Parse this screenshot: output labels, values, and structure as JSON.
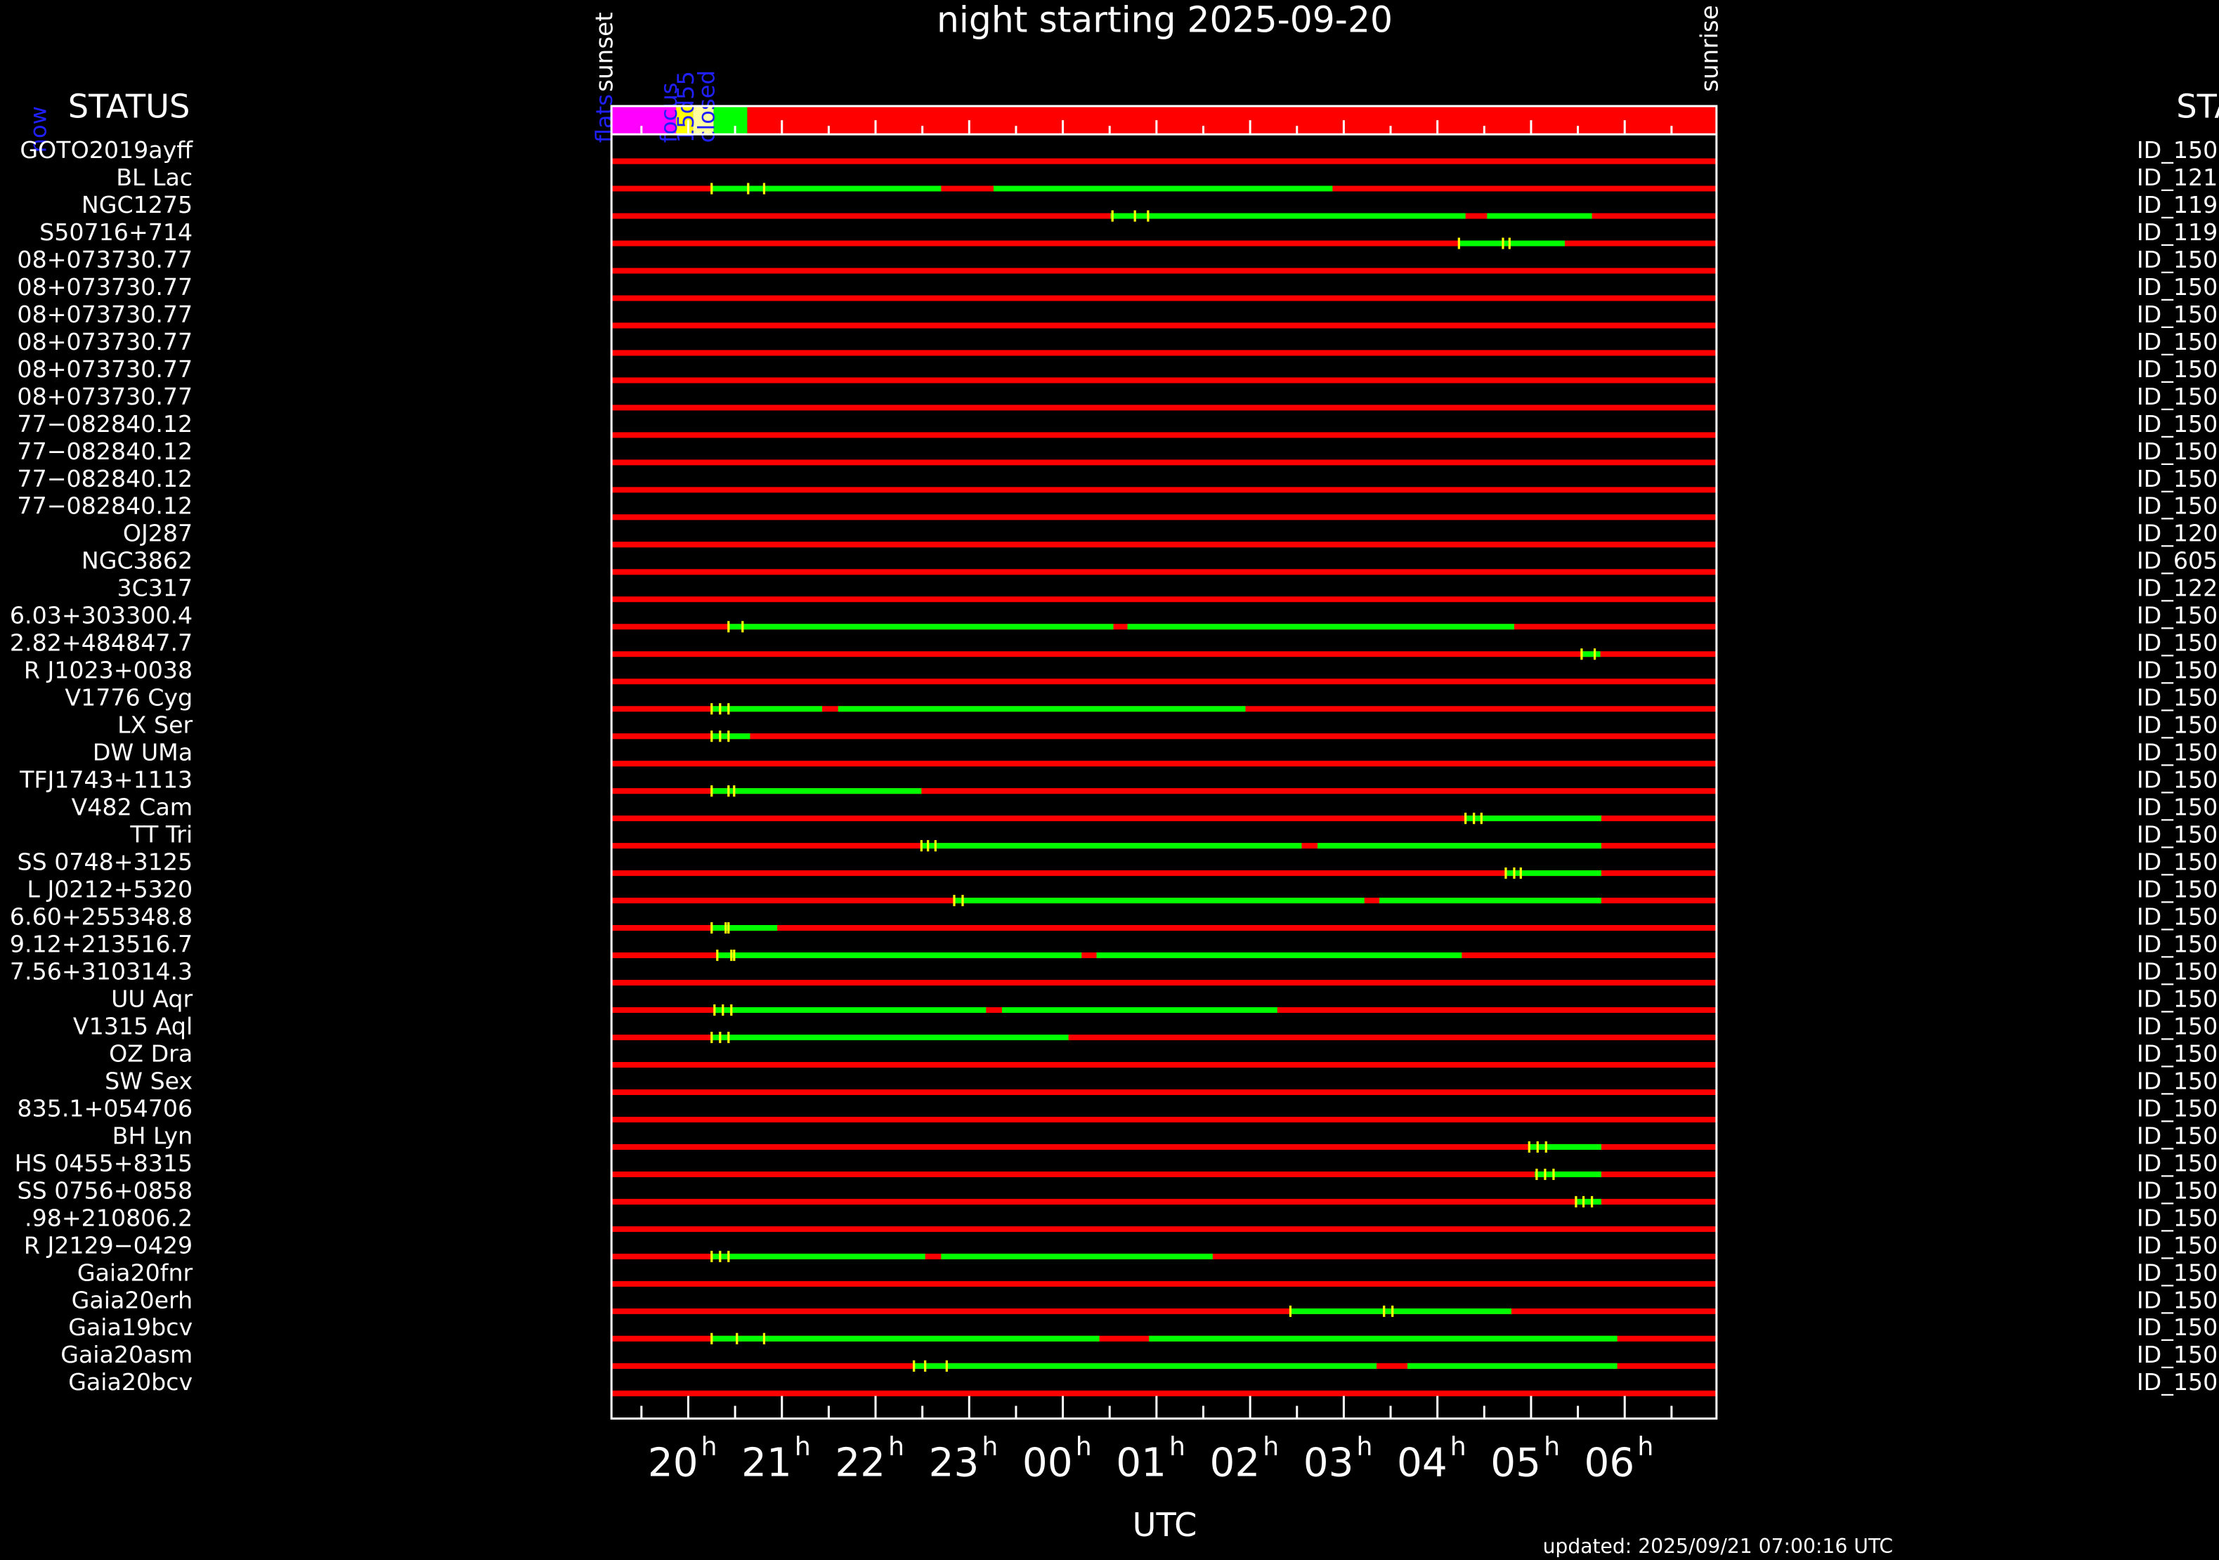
{
  "chart_data": {
    "type": "timeline",
    "title": "night starting 2025-09-20",
    "xlabel": "UTC",
    "footnote": "updated: 2025/09/21 07:00:16 UTC",
    "header_left": "STATUS",
    "header_right": "STAT",
    "now_label": "now",
    "xlim": [
      19.18,
      30.98
    ],
    "xticks": [
      {
        "value": 20,
        "label": "20"
      },
      {
        "value": 21,
        "label": "21"
      },
      {
        "value": 22,
        "label": "22"
      },
      {
        "value": 23,
        "label": "23"
      },
      {
        "value": 24,
        "label": "00"
      },
      {
        "value": 25,
        "label": "01"
      },
      {
        "value": 26,
        "label": "02"
      },
      {
        "value": 27,
        "label": "03"
      },
      {
        "value": 28,
        "label": "04"
      },
      {
        "value": 29,
        "label": "05"
      },
      {
        "value": 30,
        "label": "06"
      }
    ],
    "tick_unit": "h",
    "minor_xticks": [
      19.5,
      20.5,
      21.5,
      22.5,
      23.5,
      24.5,
      25.5,
      26.5,
      27.5,
      28.5,
      29.5,
      30.5
    ],
    "annotations": [
      {
        "label": "sunset",
        "x": 19.18
      },
      {
        "label": "sunrise",
        "x": 30.98
      }
    ],
    "events": [
      {
        "label": "flats",
        "start": 19.18,
        "end": 19.87,
        "color": "#ff00ff"
      },
      {
        "label": "focus",
        "start": 19.87,
        "end": 20.05,
        "color": "#ffff00"
      },
      {
        "label": "15d55",
        "start": 20.05,
        "end": 20.27,
        "color": "#ffffa0"
      },
      {
        "label": "closed",
        "start": 20.27,
        "end": 20.63,
        "color": "#00ff00"
      },
      {
        "start": 20.63,
        "end": 30.98,
        "color": "#ff0000"
      }
    ],
    "colors": {
      "base": "#ff0000",
      "segment": "#00ff00",
      "marker": "#ffff00",
      "event_label": "#2020ff"
    },
    "rows": [
      {
        "name": "GOTO2019ayff",
        "id": "ID_150",
        "segments": [],
        "markers": []
      },
      {
        "name": "BL Lac",
        "id": "ID_121",
        "segments": [
          [
            20.25,
            22.7
          ],
          [
            23.26,
            26.88
          ]
        ],
        "markers": [
          20.25,
          20.64,
          20.81
        ]
      },
      {
        "name": "NGC1275",
        "id": "ID_119",
        "segments": [
          [
            24.51,
            28.3
          ],
          [
            28.53,
            29.65
          ]
        ],
        "markers": [
          24.53,
          24.77,
          24.91
        ]
      },
      {
        "name": "S50716+714",
        "id": "ID_119",
        "segments": [
          [
            28.23,
            29.36
          ]
        ],
        "markers": [
          28.23,
          28.7,
          28.77
        ]
      },
      {
        "name": "08+073730.77",
        "id": "ID_150",
        "segments": [],
        "markers": []
      },
      {
        "name": "08+073730.77",
        "id": "ID_150",
        "segments": [],
        "markers": []
      },
      {
        "name": "08+073730.77",
        "id": "ID_150",
        "segments": [],
        "markers": []
      },
      {
        "name": "08+073730.77",
        "id": "ID_150",
        "segments": [],
        "markers": []
      },
      {
        "name": "08+073730.77",
        "id": "ID_150",
        "segments": [],
        "markers": []
      },
      {
        "name": "08+073730.77",
        "id": "ID_150",
        "segments": [],
        "markers": []
      },
      {
        "name": "77−082840.12",
        "id": "ID_150",
        "segments": [],
        "markers": []
      },
      {
        "name": "77−082840.12",
        "id": "ID_150",
        "segments": [],
        "markers": []
      },
      {
        "name": "77−082840.12",
        "id": "ID_150",
        "segments": [],
        "markers": []
      },
      {
        "name": "77−082840.12",
        "id": "ID_150",
        "segments": [],
        "markers": []
      },
      {
        "name": "OJ287",
        "id": "ID_120",
        "segments": [],
        "markers": []
      },
      {
        "name": "NGC3862",
        "id": "ID_605",
        "segments": [],
        "markers": []
      },
      {
        "name": "3C317",
        "id": "ID_122",
        "segments": [],
        "markers": []
      },
      {
        "name": "6.03+303300.4",
        "id": "ID_150",
        "segments": [
          [
            20.42,
            24.54
          ],
          [
            24.69,
            28.82
          ]
        ],
        "markers": [
          20.43,
          20.58
        ]
      },
      {
        "name": "2.82+484847.7",
        "id": "ID_150",
        "segments": [
          [
            29.53,
            29.74
          ]
        ],
        "markers": [
          29.54,
          29.68
        ]
      },
      {
        "name": "R J1023+0038",
        "id": "ID_150",
        "segments": [],
        "markers": []
      },
      {
        "name": "V1776 Cyg",
        "id": "ID_150",
        "segments": [
          [
            20.25,
            21.43
          ],
          [
            21.6,
            25.95
          ]
        ],
        "markers": [
          20.25,
          20.34,
          20.43
        ]
      },
      {
        "name": "LX Ser",
        "id": "ID_150",
        "segments": [
          [
            20.25,
            20.66
          ]
        ],
        "markers": [
          20.25,
          20.34,
          20.43
        ]
      },
      {
        "name": "DW UMa",
        "id": "ID_150",
        "segments": [],
        "markers": []
      },
      {
        "name": "TFJ1743+1113",
        "id": "ID_150",
        "segments": [
          [
            20.25,
            22.49
          ]
        ],
        "markers": [
          20.25,
          20.43,
          20.49
        ]
      },
      {
        "name": "V482 Cam",
        "id": "ID_150",
        "segments": [
          [
            28.3,
            29.75
          ]
        ],
        "markers": [
          28.3,
          28.39,
          28.47
        ]
      },
      {
        "name": "TT Tri",
        "id": "ID_150",
        "segments": [
          [
            22.49,
            26.55
          ],
          [
            26.72,
            29.75
          ]
        ],
        "markers": [
          22.49,
          22.56,
          22.64
        ]
      },
      {
        "name": "SS 0748+3125",
        "id": "ID_150",
        "segments": [
          [
            28.73,
            29.75
          ]
        ],
        "markers": [
          28.73,
          28.82,
          28.89
        ]
      },
      {
        "name": "L J0212+5320",
        "id": "ID_150",
        "segments": [
          [
            22.84,
            27.22
          ],
          [
            27.38,
            29.75
          ]
        ],
        "markers": [
          22.84,
          22.93
        ]
      },
      {
        "name": "6.60+255348.8",
        "id": "ID_150",
        "segments": [
          [
            20.25,
            20.95
          ]
        ],
        "markers": [
          20.25,
          20.4,
          20.43
        ]
      },
      {
        "name": "9.12+213516.7",
        "id": "ID_150",
        "segments": [
          [
            20.31,
            24.2
          ],
          [
            24.36,
            28.26
          ]
        ],
        "markers": [
          20.31,
          20.46,
          20.49
        ]
      },
      {
        "name": "7.56+310314.3",
        "id": "ID_150",
        "segments": [],
        "markers": []
      },
      {
        "name": "UU Aqr",
        "id": "ID_150",
        "segments": [
          [
            20.28,
            23.18
          ],
          [
            23.35,
            26.29
          ]
        ],
        "markers": [
          20.28,
          20.37,
          20.46
        ]
      },
      {
        "name": "V1315 Aql",
        "id": "ID_150",
        "segments": [
          [
            20.25,
            24.06
          ]
        ],
        "markers": [
          20.25,
          20.34,
          20.43
        ]
      },
      {
        "name": "OZ Dra",
        "id": "ID_150",
        "segments": [],
        "markers": []
      },
      {
        "name": "SW Sex",
        "id": "ID_150",
        "segments": [],
        "markers": []
      },
      {
        "name": "835.1+054706",
        "id": "ID_150",
        "segments": [],
        "markers": []
      },
      {
        "name": "BH Lyn",
        "id": "ID_150",
        "segments": [
          [
            28.98,
            29.75
          ]
        ],
        "markers": [
          28.98,
          29.07,
          29.16
        ]
      },
      {
        "name": "HS 0455+8315",
        "id": "ID_150",
        "segments": [
          [
            29.04,
            29.75
          ]
        ],
        "markers": [
          29.06,
          29.15,
          29.24
        ]
      },
      {
        "name": "SS 0756+0858",
        "id": "ID_150",
        "segments": [
          [
            29.48,
            29.75
          ]
        ],
        "markers": [
          29.48,
          29.56,
          29.65
        ]
      },
      {
        "name": ".98+210806.2",
        "id": "ID_150",
        "segments": [],
        "markers": []
      },
      {
        "name": "R J2129−0429",
        "id": "ID_150",
        "segments": [
          [
            20.25,
            22.53
          ],
          [
            22.7,
            25.6
          ]
        ],
        "markers": [
          20.25,
          20.34,
          20.43
        ]
      },
      {
        "name": "Gaia20fnr",
        "id": "ID_150",
        "segments": [],
        "markers": []
      },
      {
        "name": "Gaia20erh",
        "id": "ID_150",
        "segments": [
          [
            26.43,
            28.79
          ]
        ],
        "markers": [
          26.43,
          27.43,
          27.52
        ]
      },
      {
        "name": "Gaia19bcv",
        "id": "ID_150",
        "segments": [
          [
            20.25,
            24.39
          ],
          [
            24.92,
            29.92
          ]
        ],
        "markers": [
          20.25,
          20.52,
          20.81
        ]
      },
      {
        "name": "Gaia20asm",
        "id": "ID_150",
        "segments": [
          [
            22.41,
            27.35
          ],
          [
            27.68,
            29.92
          ]
        ],
        "markers": [
          22.41,
          22.53,
          22.76
        ]
      },
      {
        "name": "Gaia20bcv",
        "id": "ID_150",
        "segments": [],
        "markers": []
      }
    ]
  }
}
